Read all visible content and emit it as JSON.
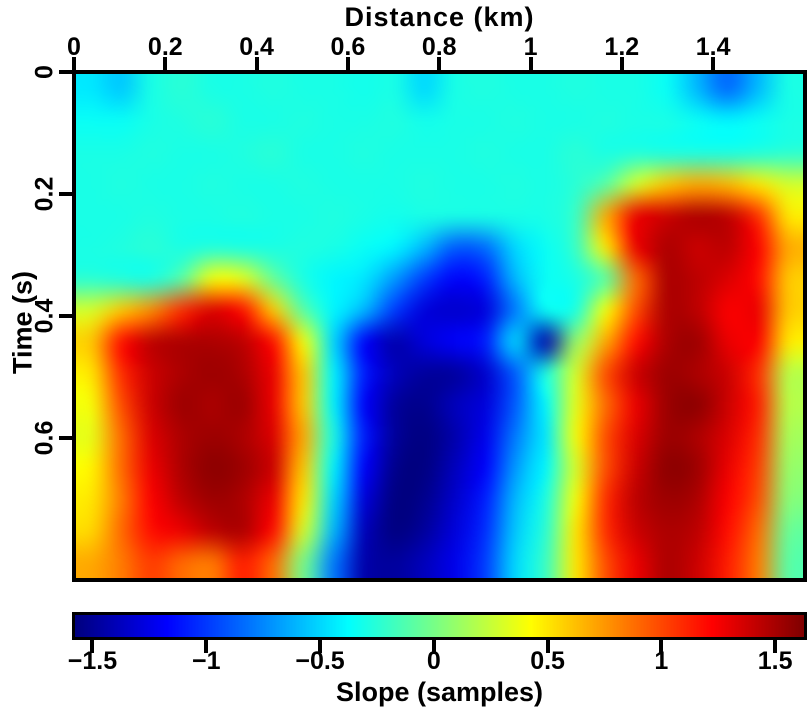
{
  "chart_data": {
    "type": "heatmap",
    "xlabel": "Distance (km)",
    "ylabel": "Time (s)",
    "colorbar_label": "Slope (samples)",
    "colormap": "jet",
    "x_range": [
      0,
      1.61
    ],
    "y_range": [
      0,
      0.84
    ],
    "x_tick_values": [
      0,
      0.2,
      0.4,
      0.6,
      0.8,
      1,
      1.2,
      1.4
    ],
    "x_tick_labels": [
      "0",
      "0.2",
      "0.4",
      "0.6",
      "0.8",
      "1",
      "1.2",
      "1.4"
    ],
    "y_tick_values": [
      0,
      0.2,
      0.4,
      0.6
    ],
    "y_tick_labels": [
      "0",
      "0.2",
      "0.4",
      "0.6"
    ],
    "colorbar_range": [
      -1.59,
      1.64
    ],
    "colorbar_tick_values": [
      -1.5,
      -1,
      -0.5,
      0,
      0.5,
      1,
      1.5
    ],
    "colorbar_tick_labels": [
      "−1.5",
      "−1",
      "−0.5",
      "0",
      "0.5",
      "1",
      "1.5"
    ],
    "grid": {
      "cols": 24,
      "rows": 16,
      "x_cell_km": 0.067,
      "y_cell_s": 0.0525,
      "values": [
        [
          -0.45,
          -0.55,
          -0.3,
          -0.25,
          -0.3,
          -0.3,
          -0.28,
          -0.3,
          -0.3,
          -0.32,
          -0.3,
          -0.5,
          -0.3,
          -0.28,
          -0.3,
          -0.3,
          -0.28,
          -0.3,
          -0.3,
          -0.35,
          -0.6,
          -0.85,
          -0.6,
          -0.3
        ],
        [
          -0.35,
          -0.35,
          -0.3,
          -0.28,
          -0.25,
          -0.3,
          -0.3,
          -0.28,
          -0.3,
          -0.3,
          -0.28,
          -0.32,
          -0.3,
          -0.3,
          -0.28,
          -0.3,
          -0.3,
          -0.28,
          -0.3,
          -0.3,
          -0.35,
          -0.4,
          -0.35,
          -0.3
        ],
        [
          -0.3,
          -0.3,
          -0.28,
          -0.3,
          -0.3,
          -0.28,
          -0.25,
          -0.3,
          -0.3,
          -0.28,
          -0.3,
          -0.3,
          -0.3,
          -0.28,
          -0.3,
          -0.3,
          -0.25,
          -0.3,
          -0.28,
          -0.3,
          -0.3,
          -0.3,
          -0.28,
          -0.25
        ],
        [
          -0.3,
          -0.28,
          -0.3,
          -0.3,
          -0.28,
          -0.3,
          -0.3,
          -0.28,
          -0.3,
          -0.3,
          -0.3,
          -0.28,
          -0.3,
          -0.3,
          -0.28,
          -0.3,
          -0.25,
          -0.1,
          0.3,
          0.6,
          0.7,
          0.65,
          0.5,
          0.3
        ],
        [
          -0.3,
          -0.3,
          -0.28,
          -0.3,
          -0.3,
          -0.28,
          -0.3,
          -0.3,
          -0.28,
          -0.3,
          -0.32,
          -0.3,
          -0.3,
          -0.3,
          -0.3,
          -0.3,
          -0.2,
          0.7,
          1.3,
          1.4,
          1.5,
          1.45,
          1.1,
          0.5
        ],
        [
          -0.3,
          -0.28,
          -0.25,
          -0.3,
          -0.28,
          -0.3,
          -0.3,
          -0.28,
          -0.3,
          -0.35,
          -0.4,
          -0.6,
          -0.9,
          -0.85,
          -0.5,
          -0.35,
          -0.2,
          0.5,
          1.3,
          1.5,
          1.4,
          1.45,
          1.25,
          0.7
        ],
        [
          -0.25,
          -0.28,
          -0.3,
          -0.1,
          0.4,
          0.35,
          -0.05,
          -0.3,
          -0.4,
          -0.45,
          -0.7,
          -1.0,
          -1.2,
          -1.1,
          -0.6,
          -0.35,
          -0.3,
          -0.1,
          0.9,
          1.5,
          1.45,
          1.35,
          1.2,
          0.6
        ],
        [
          0.3,
          0.6,
          0.8,
          1.1,
          1.35,
          1.2,
          0.6,
          -0.1,
          -0.4,
          -0.6,
          -1.0,
          -1.3,
          -1.35,
          -1.3,
          -0.8,
          -0.35,
          -0.3,
          0.4,
          1.0,
          1.5,
          1.45,
          1.25,
          1.3,
          0.6
        ],
        [
          0.6,
          1.2,
          1.45,
          1.5,
          1.5,
          1.45,
          1.2,
          0.4,
          -0.5,
          -1.2,
          -1.45,
          -1.3,
          -1.2,
          -1.1,
          -0.5,
          -1.45,
          0.1,
          0.7,
          1.2,
          1.5,
          1.55,
          1.3,
          1.25,
          0.5
        ],
        [
          0.5,
          1.1,
          1.4,
          1.5,
          1.55,
          1.5,
          1.3,
          0.6,
          -0.4,
          -1.1,
          -1.4,
          -1.5,
          -1.5,
          -1.35,
          -0.9,
          -0.3,
          0.3,
          1.0,
          1.4,
          1.55,
          1.5,
          1.4,
          1.1,
          0.2
        ],
        [
          0.4,
          1.0,
          1.4,
          1.55,
          1.5,
          1.55,
          1.3,
          0.6,
          -0.4,
          -1.2,
          -1.5,
          -1.55,
          -1.4,
          -1.3,
          -0.9,
          -0.4,
          0.35,
          0.9,
          1.3,
          1.55,
          1.6,
          1.4,
          1.15,
          0.2
        ],
        [
          0.35,
          0.9,
          1.35,
          1.5,
          1.55,
          1.5,
          1.35,
          0.7,
          -0.3,
          -1.1,
          -1.5,
          -1.6,
          -1.45,
          -1.25,
          -0.8,
          -0.45,
          0.4,
          1.0,
          1.35,
          1.55,
          1.5,
          1.35,
          1.1,
          0.15
        ],
        [
          0.45,
          0.9,
          1.3,
          1.5,
          1.6,
          1.55,
          1.4,
          0.6,
          -0.4,
          -1.2,
          -1.55,
          -1.6,
          -1.4,
          -1.2,
          -0.7,
          -0.4,
          0.3,
          1.0,
          1.4,
          1.6,
          1.55,
          1.3,
          1.05,
          0.1
        ],
        [
          0.5,
          0.85,
          1.25,
          1.45,
          1.55,
          1.5,
          1.3,
          0.5,
          -0.5,
          -1.3,
          -1.6,
          -1.55,
          -1.35,
          -1.1,
          -0.6,
          -0.3,
          0.4,
          1.1,
          1.45,
          1.55,
          1.5,
          1.25,
          1.0,
          0.05
        ],
        [
          0.55,
          0.9,
          1.2,
          1.3,
          1.45,
          1.5,
          1.2,
          0.3,
          -0.6,
          -1.4,
          -1.6,
          -1.5,
          -1.3,
          -1.05,
          -0.55,
          -0.25,
          0.5,
          1.1,
          1.4,
          1.5,
          1.45,
          1.2,
          0.9,
          -0.05
        ],
        [
          0.7,
          0.85,
          1.05,
          0.9,
          0.85,
          1.15,
          0.9,
          0.0,
          -0.8,
          -1.45,
          -1.5,
          -1.4,
          -1.25,
          -1.0,
          -0.5,
          -0.2,
          0.5,
          1.0,
          1.3,
          1.5,
          1.4,
          1.15,
          0.85,
          -0.1
        ]
      ]
    },
    "features": {
      "background_band": "cyan, slope ~ -0.3, t 0-0.2 s",
      "left_positive_blob": "red/dark-red, x 0-0.45 km, t 0.38-0.84 s",
      "middle_negative_blob": "blue/dark-blue, x 0.55-1.05 km, t 0.3-0.84 s",
      "right_positive_blob": "red/dark-red, x 1.15-1.55 km, t 0.2-0.84 s",
      "small_blue_dot": "x ~1.06 km, t ~0.45 s",
      "hook_notch": "cyan curl inside right blob near x 1.2 km, t 0.33-0.43 s"
    }
  },
  "colors": {
    "frame": "#000000",
    "background": "#ffffff",
    "text": "#000000"
  }
}
